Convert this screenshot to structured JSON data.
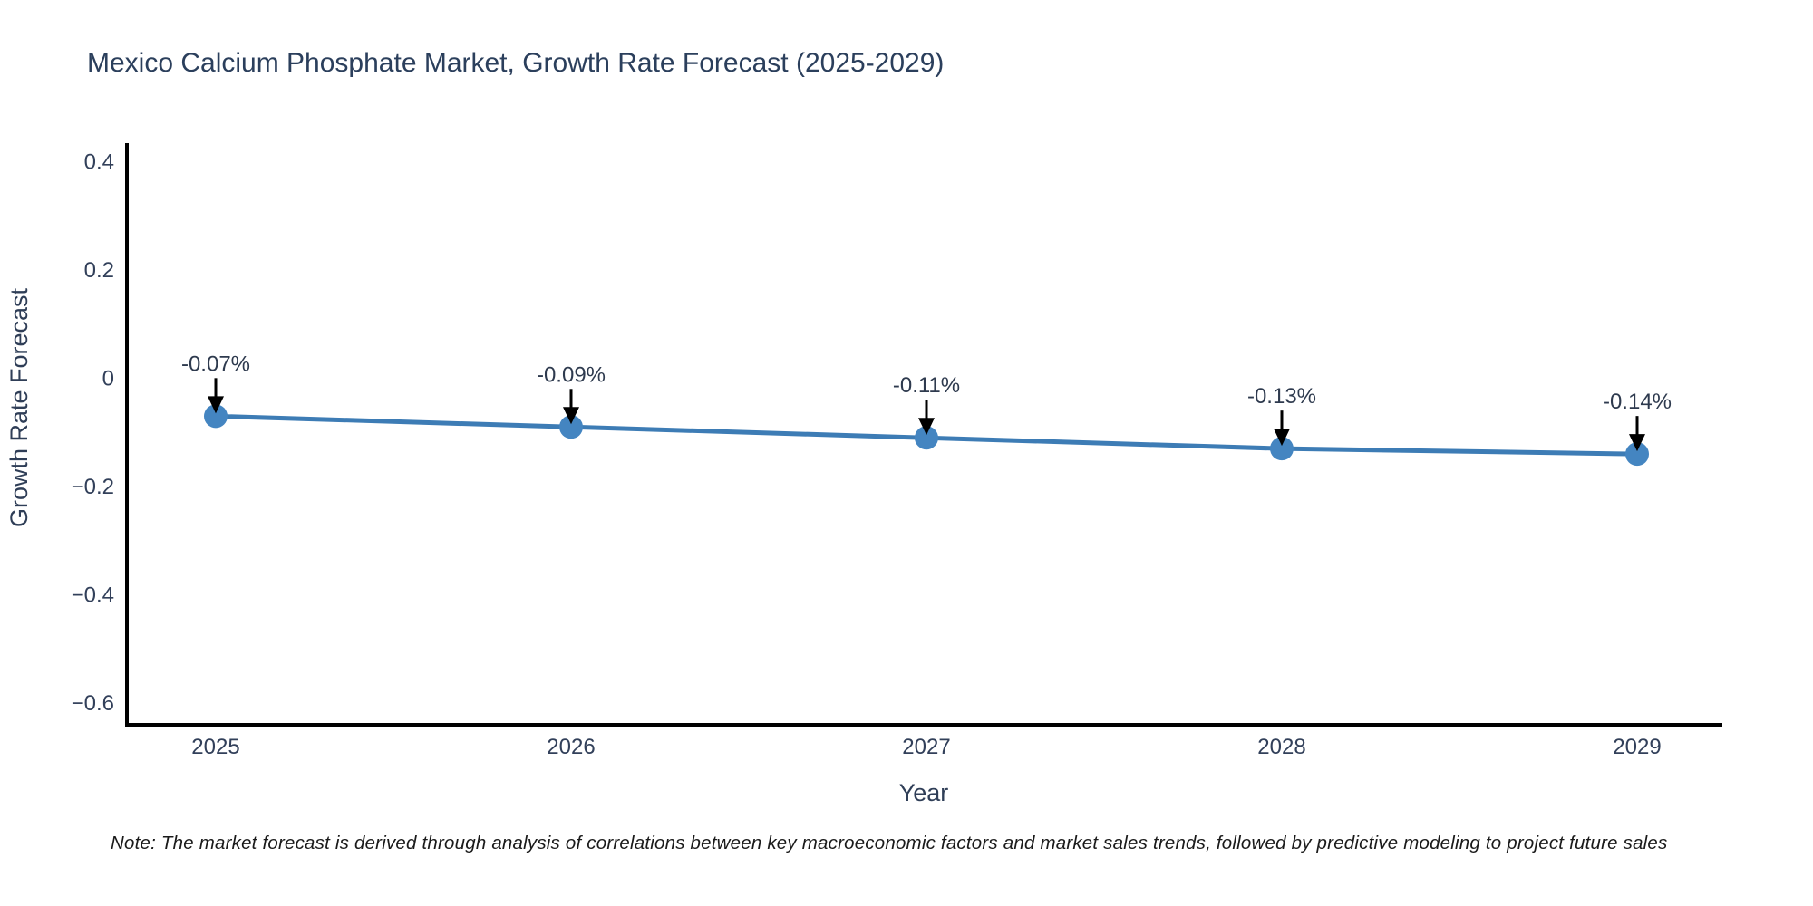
{
  "title": "Mexico Calcium Phosphate Market, Growth Rate Forecast (2025-2029)",
  "note": "Note: The market forecast is derived through analysis of correlations between key macroeconomic factors and market sales trends, followed by predictive modeling to project future sales",
  "chart_data": {
    "type": "line",
    "title": "Mexico Calcium Phosphate Market, Growth Rate Forecast (2025-2029)",
    "xlabel": "Year",
    "ylabel": "Growth Rate Forecast",
    "x": [
      2025,
      2026,
      2027,
      2028,
      2029
    ],
    "y": [
      -0.07,
      -0.09,
      -0.11,
      -0.13,
      -0.14
    ],
    "point_labels": [
      "-0.07%",
      "-0.09%",
      "-0.11%",
      "-0.13%",
      "-0.14%"
    ],
    "xtick_labels": [
      "2025",
      "2026",
      "2027",
      "2028",
      "2029"
    ],
    "yticks": [
      0.4,
      0.2,
      0,
      -0.2,
      -0.4,
      -0.6
    ],
    "ytick_labels": [
      "0.4",
      "0.2",
      "0",
      "−0.2",
      "−0.4",
      "−0.6"
    ],
    "ylim": [
      -0.64,
      0.435
    ],
    "xlim": [
      2024.75,
      2029.24
    ],
    "grid": false,
    "legend_position": "none",
    "colors": {
      "line": "#3d7cb5",
      "marker": "#4485c1",
      "axis": "#000000",
      "tick_text": "#32405a",
      "title_text": "#2b3f5c",
      "annotation_text": "#2e3a4e",
      "annotation_arrow": "#000000"
    }
  }
}
